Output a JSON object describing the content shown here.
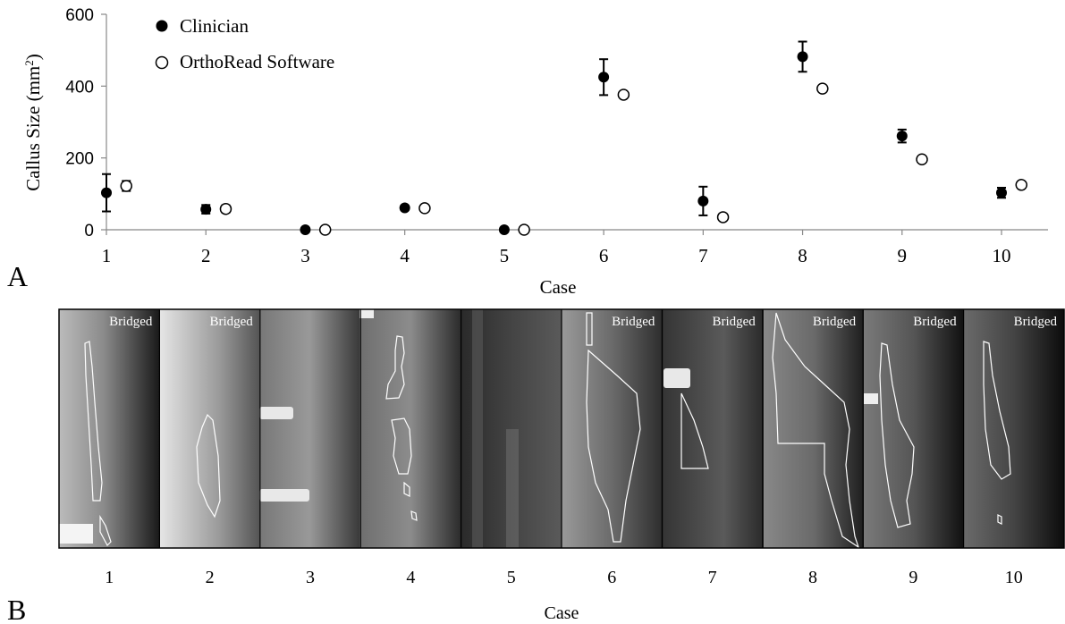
{
  "panel_a_label": "A",
  "panel_b_label": "B",
  "chart_data": {
    "type": "scatter",
    "xlabel": "Case",
    "ylabel_main": "Callus Size (mm",
    "ylabel_sup": "2",
    "ylabel_close": ")",
    "ylim": [
      0,
      600
    ],
    "yticks": [
      0,
      200,
      400,
      600
    ],
    "xticks": [
      1,
      2,
      3,
      4,
      5,
      6,
      7,
      8,
      9,
      10
    ],
    "xlim": [
      1,
      10.25
    ],
    "grid": false,
    "legend_position": "top-left",
    "series": [
      {
        "name": "Clinician",
        "marker": "filled",
        "color": "#000000",
        "x": [
          1,
          2,
          3,
          4,
          5,
          6,
          7,
          8,
          9,
          10
        ],
        "y": [
          103,
          57,
          0,
          61,
          0,
          425,
          80,
          482,
          261,
          103
        ],
        "err": [
          52,
          12,
          0,
          0,
          0,
          50,
          40,
          42,
          18,
          14
        ]
      },
      {
        "name": "OrthoRead Software",
        "marker": "open",
        "color": "#000000",
        "x": [
          1.2,
          2.2,
          3.2,
          4.2,
          5.2,
          6.2,
          7.2,
          8.2,
          9.2,
          10.2
        ],
        "y": [
          122,
          58,
          0,
          60,
          0,
          376,
          35,
          393,
          196,
          125
        ],
        "err": [
          14,
          10,
          0,
          0,
          0,
          0,
          0,
          0,
          0,
          0
        ]
      }
    ]
  },
  "panel_b": {
    "xlabel": "Case",
    "cases": [
      "1",
      "2",
      "3",
      "4",
      "5",
      "6",
      "7",
      "8",
      "9",
      "10"
    ],
    "tags": [
      "Bridged",
      "Bridged",
      "",
      "",
      "",
      "Bridged",
      "Bridged",
      "Bridged",
      "Bridged",
      "Bridged"
    ]
  }
}
